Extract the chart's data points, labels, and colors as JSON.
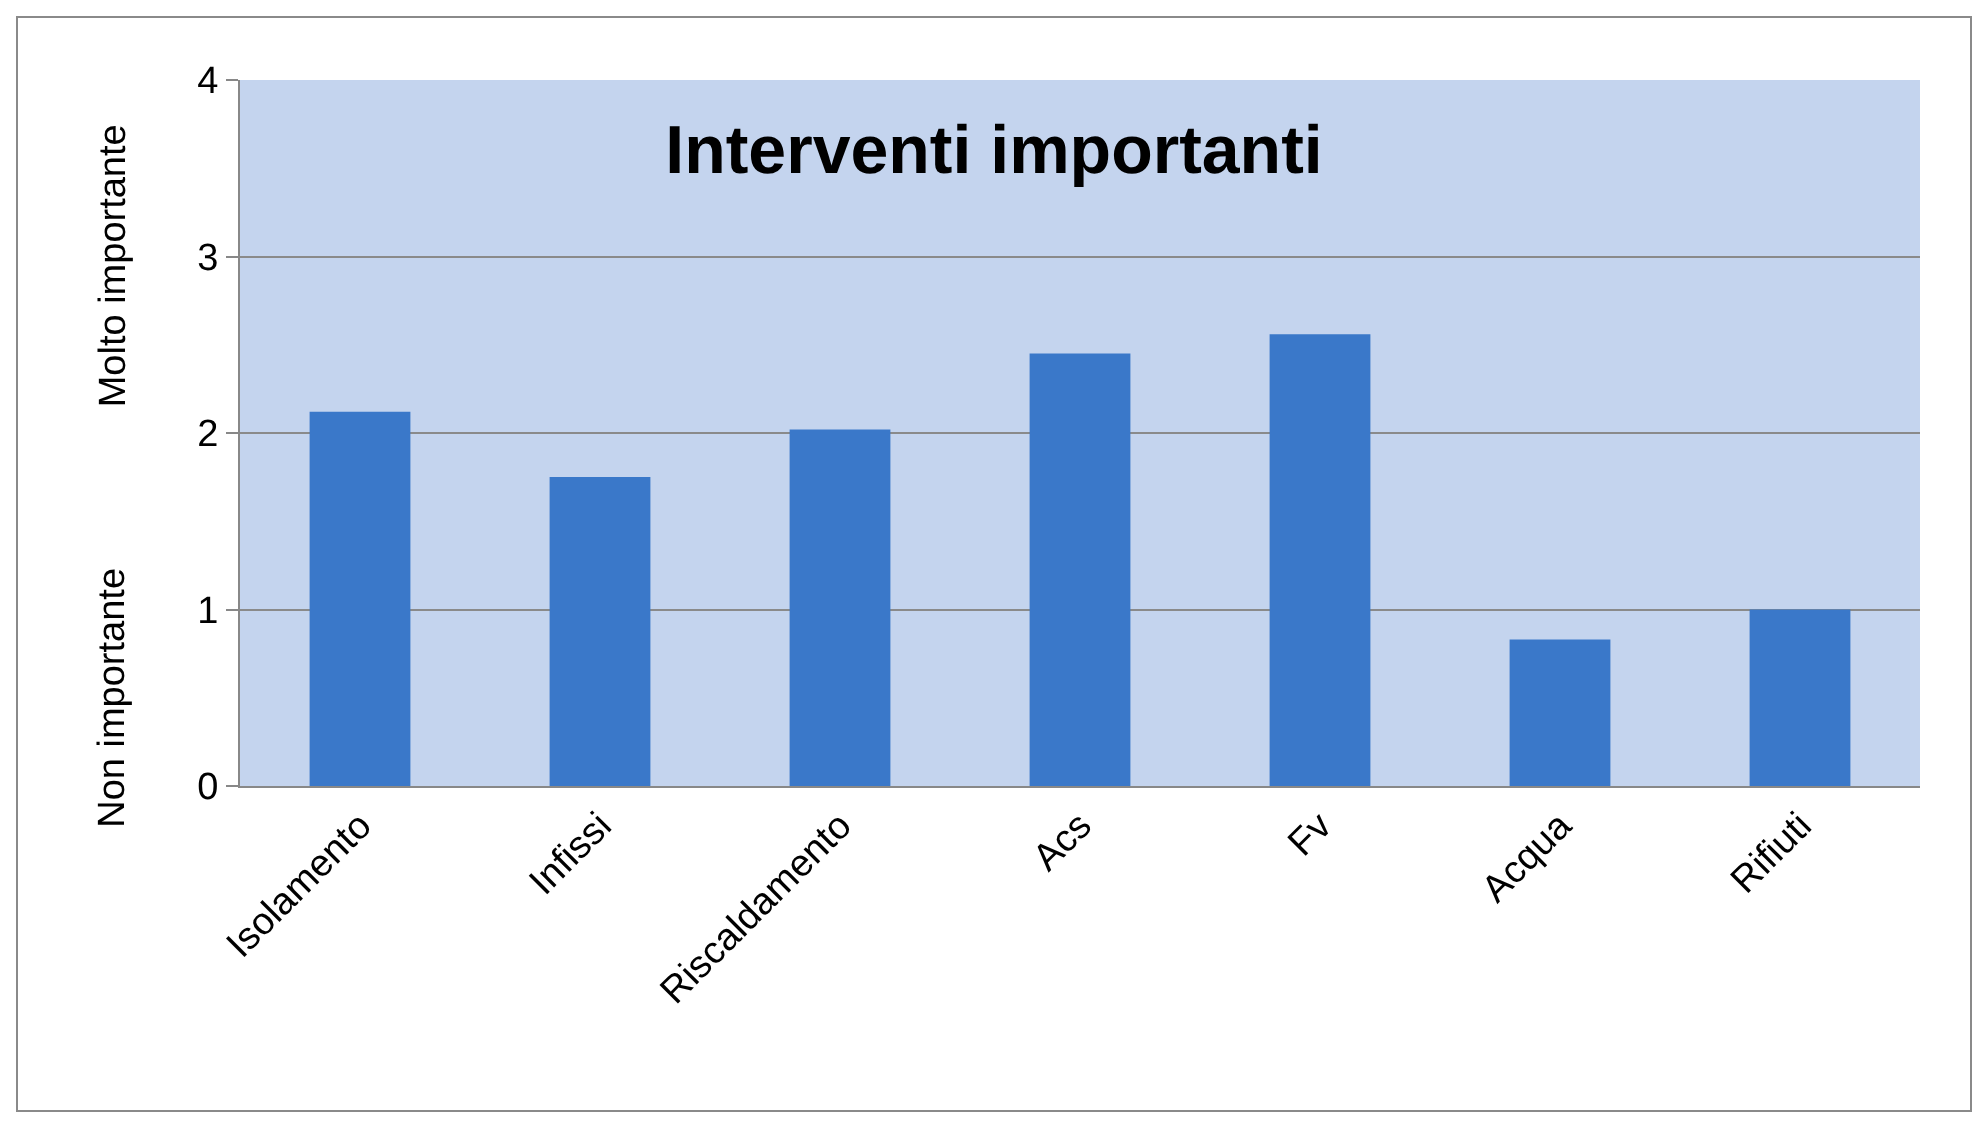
{
  "chart_data": {
    "type": "bar",
    "title": "Interventi importanti",
    "ylabel": "Molto importante",
    "annotations": [
      "Non importante"
    ],
    "categories": [
      "Isolamento",
      "Infissi",
      "Riscaldamento",
      "Acs",
      "Fv",
      "Acqua",
      "Rifiuti"
    ],
    "values": [
      2.12,
      1.75,
      2.02,
      2.45,
      2.56,
      0.83,
      1.0
    ],
    "color": "#3a78c9",
    "ylim": [
      0,
      4
    ],
    "yticks": [
      0,
      1,
      2,
      3,
      4
    ],
    "grid": "y",
    "legend": false
  }
}
